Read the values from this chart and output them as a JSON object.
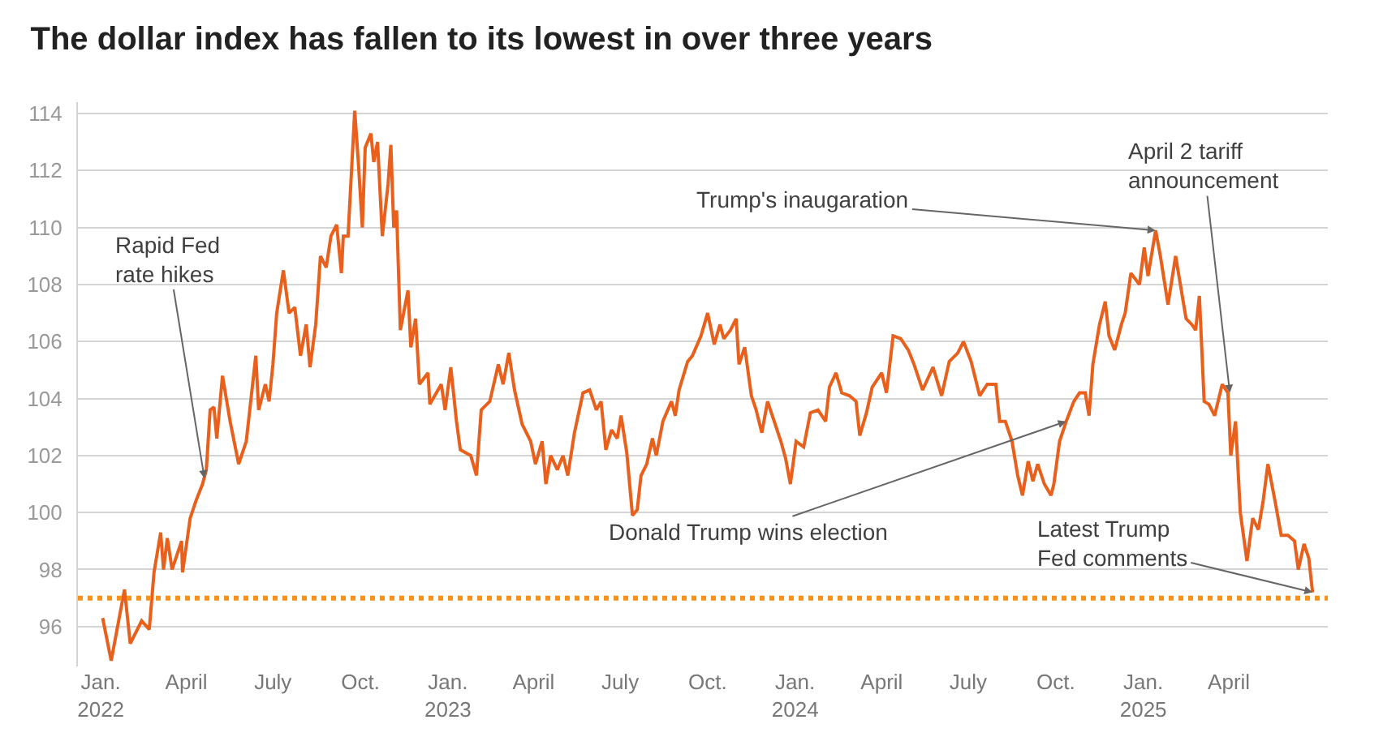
{
  "chart_data": {
    "type": "line",
    "title": "The dollar index has fallen to its lowest in over three years",
    "x": [
      "2022-01-03",
      "2022-01-12",
      "2022-01-26",
      "2022-02-01",
      "2022-02-13",
      "2022-02-21",
      "2022-02-26",
      "2022-03-05",
      "2022-03-08",
      "2022-03-12",
      "2022-03-17",
      "2022-03-27",
      "2022-03-28",
      "2022-04-05",
      "2022-04-11",
      "2022-04-18",
      "2022-04-22",
      "2022-04-26",
      "2022-04-30",
      "2022-05-03",
      "2022-05-09",
      "2022-05-17",
      "2022-05-26",
      "2022-06-03",
      "2022-06-13",
      "2022-06-16",
      "2022-06-23",
      "2022-06-27",
      "2022-07-01",
      "2022-07-05",
      "2022-07-12",
      "2022-07-18",
      "2022-07-24",
      "2022-07-30",
      "2022-08-05",
      "2022-08-09",
      "2022-08-15",
      "2022-08-20",
      "2022-08-26",
      "2022-08-31",
      "2022-09-06",
      "2022-09-11",
      "2022-09-13",
      "2022-09-18",
      "2022-09-25",
      "2022-09-29",
      "2022-10-03",
      "2022-10-06",
      "2022-10-12",
      "2022-10-15",
      "2022-10-19",
      "2022-10-24",
      "2022-10-30",
      "2022-11-02",
      "2022-11-05",
      "2022-11-08",
      "2022-11-12",
      "2022-11-20",
      "2022-11-23",
      "2022-11-28",
      "2022-12-02",
      "2022-12-11",
      "2022-12-13",
      "2022-12-25",
      "2022-12-29",
      "2023-01-04",
      "2023-01-10",
      "2023-01-14",
      "2023-01-25",
      "2023-01-31",
      "2023-02-05",
      "2023-02-14",
      "2023-02-23",
      "2023-02-28",
      "2023-03-06",
      "2023-03-12",
      "2023-03-20",
      "2023-03-29",
      "2023-04-03",
      "2023-04-10",
      "2023-04-14",
      "2023-04-19",
      "2023-04-26",
      "2023-05-02",
      "2023-05-07",
      "2023-05-14",
      "2023-05-23",
      "2023-05-30",
      "2023-06-06",
      "2023-06-11",
      "2023-06-16",
      "2023-06-22",
      "2023-06-28",
      "2023-07-02",
      "2023-07-08",
      "2023-07-14",
      "2023-07-19",
      "2023-07-23",
      "2023-07-29",
      "2023-08-04",
      "2023-08-08",
      "2023-08-15",
      "2023-08-24",
      "2023-08-28",
      "2023-09-01",
      "2023-09-10",
      "2023-09-15",
      "2023-09-24",
      "2023-10-01",
      "2023-10-08",
      "2023-10-14",
      "2023-10-18",
      "2023-10-25",
      "2023-10-31",
      "2023-11-03",
      "2023-11-09",
      "2023-11-16",
      "2023-11-21",
      "2023-11-27",
      "2023-12-03",
      "2023-12-10",
      "2023-12-17",
      "2023-12-22",
      "2023-12-27",
      "2024-01-02",
      "2024-01-10",
      "2024-01-17",
      "2024-01-25",
      "2024-02-02",
      "2024-02-06",
      "2024-02-13",
      "2024-02-19",
      "2024-02-27",
      "2024-03-05",
      "2024-03-09",
      "2024-03-16",
      "2024-03-22",
      "2024-04-01",
      "2024-04-06",
      "2024-04-13",
      "2024-04-21",
      "2024-04-29",
      "2024-05-05",
      "2024-05-14",
      "2024-05-25",
      "2024-06-03",
      "2024-06-11",
      "2024-06-20",
      "2024-06-26",
      "2024-07-04",
      "2024-07-13",
      "2024-07-21",
      "2024-07-30",
      "2024-08-03",
      "2024-08-09",
      "2024-08-16",
      "2024-08-22",
      "2024-08-27",
      "2024-09-02",
      "2024-09-07",
      "2024-09-12",
      "2024-09-19",
      "2024-09-26",
      "2024-09-29",
      "2024-10-05",
      "2024-10-12",
      "2024-10-20",
      "2024-10-26",
      "2024-11-01",
      "2024-11-05",
      "2024-11-09",
      "2024-11-16",
      "2024-11-22",
      "2024-11-26",
      "2024-12-02",
      "2024-12-09",
      "2024-12-13",
      "2024-12-19",
      "2024-12-28",
      "2025-01-02",
      "2025-01-06",
      "2025-01-14",
      "2025-01-19",
      "2025-01-27",
      "2025-02-04",
      "2025-02-08",
      "2025-02-15",
      "2025-02-21",
      "2025-02-25",
      "2025-03-01",
      "2025-03-06",
      "2025-03-11",
      "2025-03-17",
      "2025-03-25",
      "2025-03-31",
      "2025-04-03",
      "2025-04-08",
      "2025-04-13",
      "2025-04-20",
      "2025-04-26",
      "2025-05-02",
      "2025-05-07",
      "2025-05-12",
      "2025-05-19",
      "2025-05-26",
      "2025-06-02",
      "2025-06-09",
      "2025-06-13",
      "2025-06-19",
      "2025-06-24",
      "2025-06-28"
    ],
    "series": [
      {
        "color": "#e8601c",
        "values": [
          96.3,
          94.8,
          97.3,
          95.4,
          96.2,
          95.9,
          97.9,
          99.3,
          98.0,
          99.1,
          98.0,
          99.0,
          97.9,
          99.8,
          100.4,
          101.0,
          101.5,
          103.6,
          103.7,
          102.6,
          104.8,
          103.2,
          101.7,
          102.5,
          105.5,
          103.6,
          104.5,
          103.9,
          105.2,
          107.0,
          108.5,
          107.0,
          107.2,
          105.5,
          106.6,
          105.1,
          106.6,
          109.0,
          108.6,
          109.7,
          110.1,
          108.4,
          109.7,
          109.7,
          114.1,
          112.2,
          110.0,
          112.8,
          113.3,
          112.3,
          113.0,
          109.7,
          111.5,
          112.9,
          110.0,
          110.6,
          106.4,
          107.8,
          105.8,
          106.8,
          104.5,
          104.9,
          103.8,
          104.5,
          103.6,
          105.1,
          103.2,
          102.2,
          102.0,
          101.3,
          103.6,
          103.9,
          105.2,
          104.5,
          105.6,
          104.3,
          103.1,
          102.5,
          101.7,
          102.5,
          101.0,
          102.0,
          101.5,
          102.0,
          101.3,
          102.8,
          104.2,
          104.3,
          103.6,
          103.9,
          102.2,
          102.9,
          102.6,
          103.4,
          102.1,
          99.9,
          100.1,
          101.3,
          101.7,
          102.6,
          102.0,
          103.2,
          103.9,
          103.4,
          104.3,
          105.3,
          105.5,
          106.2,
          107.0,
          105.9,
          106.6,
          106.1,
          106.4,
          106.8,
          105.2,
          105.8,
          104.1,
          103.6,
          102.8,
          103.9,
          103.2,
          102.5,
          101.9,
          101.0,
          102.5,
          102.3,
          103.5,
          103.6,
          103.2,
          104.4,
          104.9,
          104.2,
          104.1,
          103.9,
          102.7,
          103.5,
          104.4,
          104.9,
          104.2,
          106.2,
          106.1,
          105.7,
          105.2,
          104.3,
          105.1,
          104.1,
          105.3,
          105.6,
          106.0,
          105.3,
          104.1,
          104.5,
          104.5,
          103.2,
          103.2,
          102.5,
          101.3,
          100.6,
          101.8,
          101.1,
          101.7,
          101.0,
          100.6,
          101.0,
          102.5,
          103.2,
          103.9,
          104.2,
          104.2,
          103.4,
          105.2,
          106.6,
          107.4,
          106.2,
          105.7,
          106.6,
          107.0,
          108.4,
          108.0,
          109.3,
          108.3,
          109.9,
          109.0,
          107.3,
          109.0,
          108.2,
          106.8,
          106.6,
          106.4,
          107.6,
          103.9,
          103.8,
          103.4,
          104.5,
          104.2,
          102.0,
          103.2,
          100.0,
          98.3,
          99.8,
          99.4,
          100.4,
          101.7,
          100.5,
          99.2,
          99.2,
          99.0,
          98.0,
          98.9,
          98.4,
          97.2
        ]
      }
    ],
    "xlim": [
      "2021-12-08",
      "2025-07-14"
    ],
    "ylim": [
      94.6,
      114.4
    ],
    "xticks": [
      {
        "value": "2022-01-01",
        "label": "Jan.\n2022"
      },
      {
        "value": "2022-04-01",
        "label": "April"
      },
      {
        "value": "2022-07-01",
        "label": "July"
      },
      {
        "value": "2022-10-01",
        "label": "Oct."
      },
      {
        "value": "2023-01-01",
        "label": "Jan.\n2023"
      },
      {
        "value": "2023-04-01",
        "label": "April"
      },
      {
        "value": "2023-07-01",
        "label": "July"
      },
      {
        "value": "2023-10-01",
        "label": "Oct."
      },
      {
        "value": "2024-01-01",
        "label": "Jan.\n2024"
      },
      {
        "value": "2024-04-01",
        "label": "April"
      },
      {
        "value": "2024-07-01",
        "label": "July"
      },
      {
        "value": "2024-10-01",
        "label": "Oct."
      },
      {
        "value": "2025-01-01",
        "label": "Jan.\n2025"
      },
      {
        "value": "2025-04-01",
        "label": "April"
      }
    ],
    "yticks": [
      96,
      98,
      100,
      102,
      104,
      106,
      108,
      110,
      112,
      114
    ],
    "grid": "y",
    "ref_lines": [
      {
        "axis": "y",
        "value": 97,
        "color": "#f5921e",
        "line_style": "dotted"
      }
    ],
    "annotations": [
      {
        "text": "Rapid Fed\nrate hikes",
        "x": "2022-04-20",
        "y": 101.2
      },
      {
        "text": "Trump's inaugaration",
        "x": "2025-01-14",
        "y": 109.9
      },
      {
        "text": "April 2 tariff\nannouncement",
        "x": "2025-04-02",
        "y": 104.2
      },
      {
        "text": "Donald Trump wins election",
        "x": "2024-10-12",
        "y": 103.2
      },
      {
        "text": "Latest Trump\nFed comments",
        "x": "2025-06-28",
        "y": 97.2
      }
    ]
  }
}
